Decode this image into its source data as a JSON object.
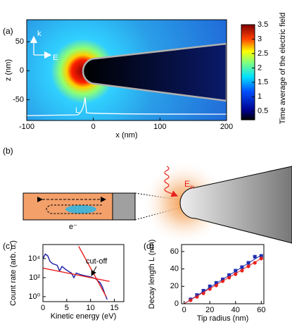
{
  "chart_data": [
    {
      "type": "heatmap",
      "panel": "(a)",
      "xlabel": "x (nm)",
      "ylabel": "z (nm)",
      "xlim": [
        -100,
        200
      ],
      "ylim": [
        -86,
        88
      ],
      "xticks": [
        -100,
        0,
        100,
        200
      ],
      "yticks": [
        -50,
        0,
        50
      ],
      "colorbar": {
        "label": "Time average of the electric field",
        "lim": [
          0.2,
          3.5
        ],
        "ticks": [
          0.5,
          1,
          1.5,
          2,
          2.5,
          3,
          3.5
        ]
      },
      "annotations": [
        "k",
        "E",
        "L"
      ]
    },
    {
      "type": "line",
      "panel": "(c)",
      "xlabel": "Kinetic energy (eV)",
      "ylabel": "Count rate (arb. u.)",
      "log_y": true,
      "xlim": [
        0,
        17
      ],
      "ylim": [
        0.3,
        300000
      ],
      "xticks": [
        0,
        5,
        10,
        15
      ],
      "yticks": [
        {
          "value": 1,
          "label": "10⁰"
        },
        {
          "value": 100,
          "label": "10²"
        },
        {
          "value": 10000,
          "label": "10⁴"
        }
      ],
      "annotation": "cut-off",
      "series": [
        {
          "color": "#1a1aa6",
          "x": [
            0,
            0.5,
            1,
            1.5,
            2,
            3,
            3.5,
            4,
            5,
            6,
            6.5,
            7,
            8,
            9,
            10,
            11,
            12,
            12.5,
            13,
            13.5
          ],
          "values": [
            10000,
            30000,
            20000,
            5000,
            3000,
            2000,
            500,
            1500,
            600,
            300,
            100,
            300,
            200,
            150,
            120,
            80,
            30,
            10,
            2,
            0.5
          ]
        },
        {
          "color": "#e8211c",
          "x": [
            7.5,
            13.3
          ],
          "values": [
            200000,
            1
          ]
        },
        {
          "color": "#e8211c",
          "x": [
            0,
            14
          ],
          "values": [
            1000,
            40
          ]
        }
      ]
    },
    {
      "type": "scatter",
      "panel": "(d)",
      "xlabel": "Tip radius (nm)",
      "ylabel": "Decay length L (nm)",
      "xlim": [
        -2,
        62
      ],
      "ylim": [
        0,
        68
      ],
      "xticks": [
        0,
        20,
        40,
        60
      ],
      "yticks": [
        0,
        20,
        40,
        60
      ],
      "series": [
        {
          "color": "#1f2fb0",
          "marker": "square",
          "x": [
            5,
            10,
            15,
            20,
            25,
            30,
            35,
            40,
            45,
            50,
            55,
            60
          ],
          "values": [
            5,
            10,
            15,
            20,
            24,
            28,
            33,
            38,
            42,
            47,
            54,
            55
          ]
        },
        {
          "color": "#e8211c",
          "marker": "circle",
          "x": [
            5,
            10,
            15,
            20,
            25,
            30,
            35,
            40,
            45,
            50,
            55,
            60
          ],
          "values": [
            4,
            8,
            12,
            17,
            21,
            26,
            30,
            34,
            38,
            43,
            47,
            52
          ]
        },
        {
          "color": "#1f2fb0",
          "marker": "line",
          "x": [
            0,
            60
          ],
          "values": [
            0,
            56
          ]
        },
        {
          "color": "#e8211c",
          "marker": "line",
          "x": [
            0,
            60
          ],
          "values": [
            0,
            52
          ]
        }
      ]
    }
  ],
  "diagram": {
    "panel": "(b)",
    "field": "E",
    "field_subscript": "in",
    "electron": "e⁻"
  }
}
